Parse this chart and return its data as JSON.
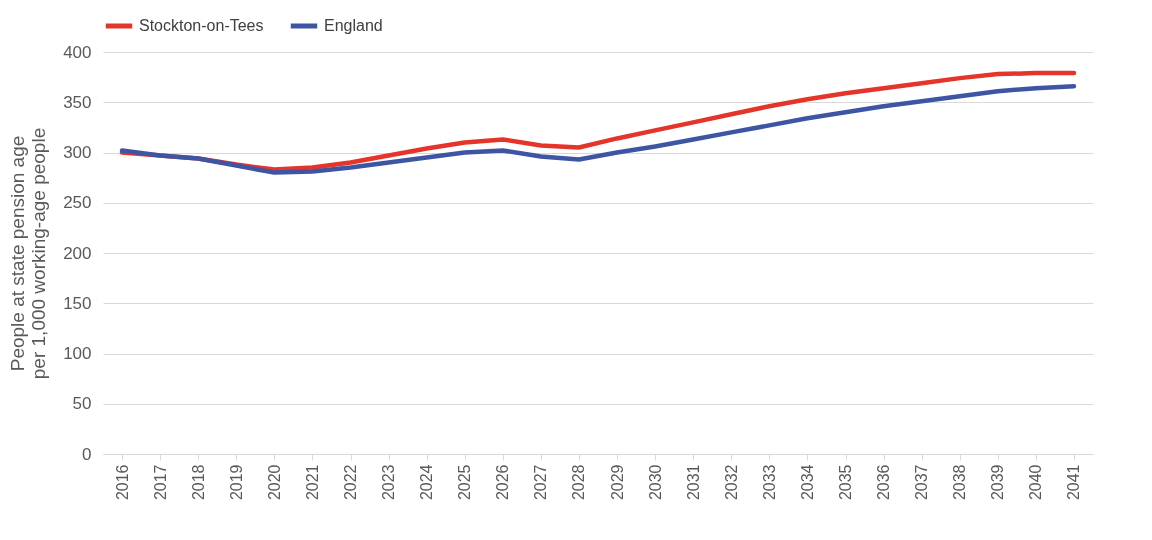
{
  "chart_data": {
    "type": "line",
    "ylabel": "People at state pension age\nper 1,000 working-age people",
    "categories": [
      "2016",
      "2017",
      "2018",
      "2019",
      "2020",
      "2021",
      "2022",
      "2023",
      "2024",
      "2025",
      "2026",
      "2027",
      "2028",
      "2029",
      "2030",
      "2031",
      "2032",
      "2033",
      "2034",
      "2035",
      "2036",
      "2037",
      "2038",
      "2039",
      "2040",
      "2041"
    ],
    "series": [
      {
        "name": "Stockton-on-Tees",
        "color": "#e5352a",
        "values": [
          300,
          297,
          294,
          288,
          283,
          285,
          290,
          297,
          304,
          310,
          313,
          307,
          305,
          314,
          322,
          330,
          338,
          346,
          353,
          359,
          364,
          369,
          374,
          378,
          379,
          379
        ]
      },
      {
        "name": "England",
        "color": "#3e55a4",
        "values": [
          302,
          297,
          294,
          287,
          280,
          281,
          285,
          290,
          295,
          300,
          302,
          296,
          293,
          300,
          306,
          313,
          320,
          327,
          334,
          340,
          346,
          351,
          356,
          361,
          364,
          366
        ]
      }
    ],
    "ylim": [
      0,
      400
    ],
    "yticks": [
      0,
      50,
      100,
      150,
      200,
      250,
      300,
      350,
      400
    ],
    "grid": "y",
    "legend": "top",
    "marker": "none",
    "line_style": "solid"
  }
}
